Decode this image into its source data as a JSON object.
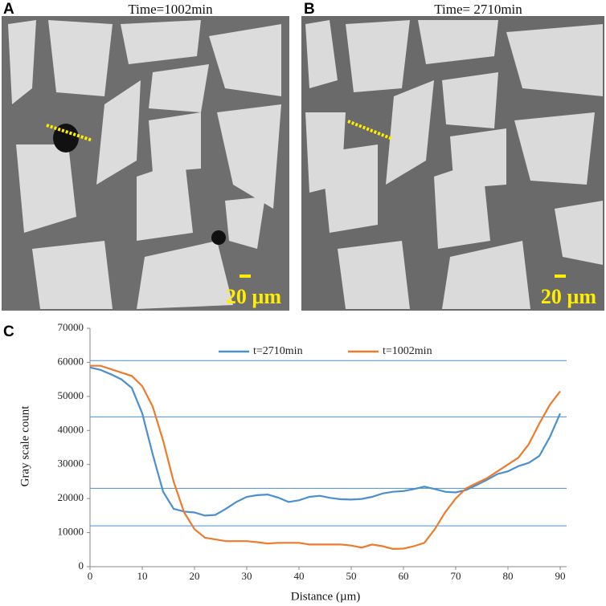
{
  "panels": {
    "a": {
      "letter": "A",
      "caption": "Time=1002min",
      "scale": "20 µm"
    },
    "b": {
      "letter": "B",
      "caption": "Time= 2710min",
      "scale": "20 µm"
    }
  },
  "chart_data": {
    "type": "line",
    "letter": "C",
    "x_label": "Distance (µm)",
    "y_label": "Gray scale count",
    "x": [
      0,
      2,
      4,
      6,
      8,
      10,
      12,
      14,
      16,
      18,
      20,
      22,
      24,
      26,
      28,
      30,
      32,
      34,
      36,
      38,
      40,
      42,
      44,
      46,
      48,
      50,
      52,
      54,
      56,
      58,
      60,
      62,
      64,
      66,
      68,
      70,
      72,
      74,
      76,
      78,
      80,
      82,
      84,
      86,
      88,
      90
    ],
    "series": [
      {
        "name": "t=2710min",
        "color": "#4a8fd0",
        "values": [
          58500,
          57800,
          56500,
          55000,
          52500,
          45000,
          33000,
          22000,
          17000,
          16200,
          15900,
          15000,
          15200,
          17000,
          19000,
          20500,
          21000,
          21200,
          20300,
          19000,
          19500,
          20500,
          20800,
          20200,
          19800,
          19700,
          19900,
          20500,
          21500,
          22000,
          22200,
          22800,
          23500,
          22800,
          22000,
          21800,
          22500,
          24000,
          25500,
          27200,
          28000,
          29500,
          30500,
          32500,
          38000,
          45000
        ]
      },
      {
        "name": "t=1002min",
        "color": "#ee7a2c",
        "values": [
          59000,
          59000,
          58000,
          57000,
          56000,
          53000,
          47000,
          37000,
          25000,
          16000,
          11000,
          8500,
          8000,
          7500,
          7500,
          7500,
          7200,
          6800,
          7000,
          7000,
          7000,
          6500,
          6500,
          6500,
          6500,
          6200,
          5600,
          6500,
          6000,
          5200,
          5300,
          6000,
          7000,
          11000,
          16000,
          20000,
          23000,
          24500,
          26000,
          28000,
          30000,
          32000,
          36000,
          42000,
          47500,
          51500
        ]
      }
    ],
    "reference_lines": [
      60500,
      44000,
      23000,
      12000
    ],
    "xlim": [
      0,
      90
    ],
    "ylim": [
      0,
      70000
    ],
    "xticks": [
      0,
      10,
      20,
      30,
      40,
      50,
      60,
      70,
      80,
      90
    ],
    "yticks": [
      0,
      10000,
      20000,
      30000,
      40000,
      50000,
      60000,
      70000
    ]
  }
}
